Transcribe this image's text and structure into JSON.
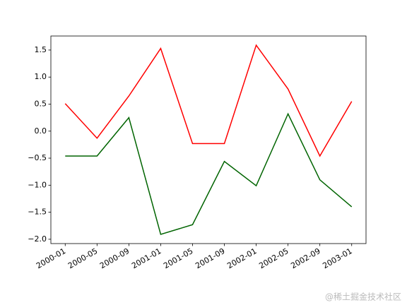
{
  "chart_data": {
    "type": "line",
    "categories": [
      "2000-01",
      "2000-05",
      "2000-09",
      "2001-01",
      "2001-05",
      "2001-09",
      "2002-01",
      "2002-05",
      "2002-09",
      "2003-01"
    ],
    "series": [
      {
        "color": "#ff0000",
        "values": [
          0.51,
          -0.13,
          0.65,
          1.53,
          -0.23,
          -0.23,
          1.59,
          0.78,
          -0.46,
          0.55
        ]
      },
      {
        "color": "#006400",
        "values": [
          -0.46,
          -0.46,
          0.25,
          -1.91,
          -1.73,
          -0.56,
          -1.01,
          0.32,
          -0.9,
          -1.4
        ]
      }
    ],
    "ylim": [
      -2.08,
      1.76
    ],
    "yticks": [
      {
        "value": -2,
        "label": "−2.0"
      },
      {
        "value": -1.5,
        "label": "−1.5"
      },
      {
        "value": -1,
        "label": "−1.0"
      },
      {
        "value": -0.5,
        "label": "−0.5"
      },
      {
        "value": 0,
        "label": "0.0"
      },
      {
        "value": 0.5,
        "label": "0.5"
      },
      {
        "value": 1,
        "label": "1.0"
      },
      {
        "value": 1.5,
        "label": "1.5"
      }
    ],
    "grid": false,
    "watermark": "@稀土掘金技术社区"
  }
}
